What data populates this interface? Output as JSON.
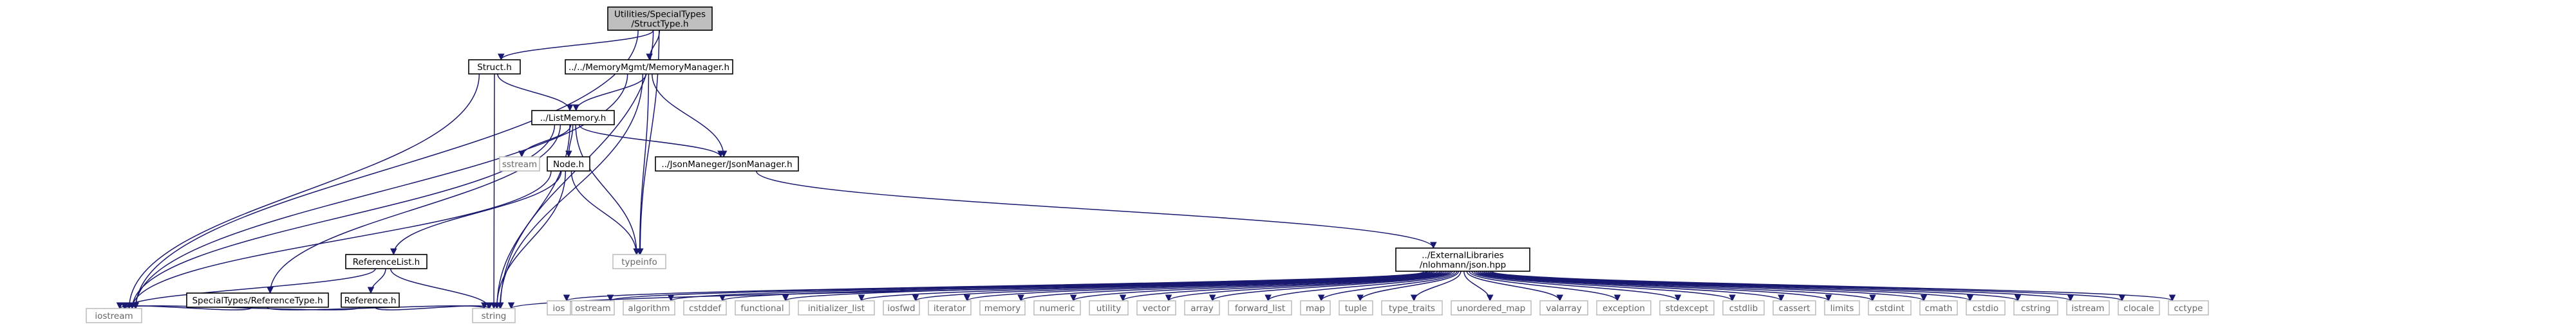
{
  "graph": {
    "nodes": [
      {
        "id": "root",
        "lines": [
          "Utilities/SpecialTypes",
          "/StructType.h"
        ],
        "style": "root"
      },
      {
        "id": "struct",
        "lines": [
          "Struct.h"
        ],
        "style": "file"
      },
      {
        "id": "memmgr",
        "lines": [
          "../../MemoryMgmt/MemoryManager.h"
        ],
        "style": "file"
      },
      {
        "id": "listmem",
        "lines": [
          "../ListMemory.h"
        ],
        "style": "file"
      },
      {
        "id": "sstream",
        "lines": [
          "sstream"
        ],
        "style": "lib"
      },
      {
        "id": "node",
        "lines": [
          "Node.h"
        ],
        "style": "file"
      },
      {
        "id": "jsonmgr",
        "lines": [
          "../JsonManeger/JsonManager.h"
        ],
        "style": "file"
      },
      {
        "id": "typeinfo",
        "lines": [
          "typeinfo"
        ],
        "style": "lib"
      },
      {
        "id": "reflist",
        "lines": [
          "ReferenceList.h"
        ],
        "style": "file"
      },
      {
        "id": "reftype",
        "lines": [
          "SpecialTypes/ReferenceType.h"
        ],
        "style": "file"
      },
      {
        "id": "ref",
        "lines": [
          "Reference.h"
        ],
        "style": "file"
      },
      {
        "id": "iostream",
        "lines": [
          "iostream"
        ],
        "style": "lib"
      },
      {
        "id": "string",
        "lines": [
          "string"
        ],
        "style": "lib"
      },
      {
        "id": "json",
        "lines": [
          "../ExternalLibraries",
          "/nlohmann/json.hpp"
        ],
        "style": "file"
      },
      {
        "id": "ios",
        "lines": [
          "ios"
        ],
        "style": "lib"
      },
      {
        "id": "ostream",
        "lines": [
          "ostream"
        ],
        "style": "lib"
      },
      {
        "id": "algorithm",
        "lines": [
          "algorithm"
        ],
        "style": "lib"
      },
      {
        "id": "cstddef",
        "lines": [
          "cstddef"
        ],
        "style": "lib"
      },
      {
        "id": "functional",
        "lines": [
          "functional"
        ],
        "style": "lib"
      },
      {
        "id": "initializer_list",
        "lines": [
          "initializer_list"
        ],
        "style": "lib"
      },
      {
        "id": "iosfwd",
        "lines": [
          "iosfwd"
        ],
        "style": "lib"
      },
      {
        "id": "iterator",
        "lines": [
          "iterator"
        ],
        "style": "lib"
      },
      {
        "id": "memory",
        "lines": [
          "memory"
        ],
        "style": "lib"
      },
      {
        "id": "numeric",
        "lines": [
          "numeric"
        ],
        "style": "lib"
      },
      {
        "id": "utility",
        "lines": [
          "utility"
        ],
        "style": "lib"
      },
      {
        "id": "vector",
        "lines": [
          "vector"
        ],
        "style": "lib"
      },
      {
        "id": "array",
        "lines": [
          "array"
        ],
        "style": "lib"
      },
      {
        "id": "forward_list",
        "lines": [
          "forward_list"
        ],
        "style": "lib"
      },
      {
        "id": "map",
        "lines": [
          "map"
        ],
        "style": "lib"
      },
      {
        "id": "tuple",
        "lines": [
          "tuple"
        ],
        "style": "lib"
      },
      {
        "id": "type_traits",
        "lines": [
          "type_traits"
        ],
        "style": "lib"
      },
      {
        "id": "unordered_map",
        "lines": [
          "unordered_map"
        ],
        "style": "lib"
      },
      {
        "id": "valarray",
        "lines": [
          "valarray"
        ],
        "style": "lib"
      },
      {
        "id": "exception",
        "lines": [
          "exception"
        ],
        "style": "lib"
      },
      {
        "id": "stdexcept",
        "lines": [
          "stdexcept"
        ],
        "style": "lib"
      },
      {
        "id": "cstdlib",
        "lines": [
          "cstdlib"
        ],
        "style": "lib"
      },
      {
        "id": "cassert",
        "lines": [
          "cassert"
        ],
        "style": "lib"
      },
      {
        "id": "limits",
        "lines": [
          "limits"
        ],
        "style": "lib"
      },
      {
        "id": "cstdint",
        "lines": [
          "cstdint"
        ],
        "style": "lib"
      },
      {
        "id": "cmath",
        "lines": [
          "cmath"
        ],
        "style": "lib"
      },
      {
        "id": "cstdio",
        "lines": [
          "cstdio"
        ],
        "style": "lib"
      },
      {
        "id": "cstring",
        "lines": [
          "cstring"
        ],
        "style": "lib"
      },
      {
        "id": "istream",
        "lines": [
          "istream"
        ],
        "style": "lib"
      },
      {
        "id": "clocale",
        "lines": [
          "clocale"
        ],
        "style": "lib"
      },
      {
        "id": "cctype",
        "lines": [
          "cctype"
        ],
        "style": "lib"
      }
    ],
    "edges": [
      [
        "root",
        "struct"
      ],
      [
        "root",
        "memmgr"
      ],
      [
        "root",
        "iostream"
      ],
      [
        "root",
        "string"
      ],
      [
        "root",
        "typeinfo"
      ],
      [
        "struct",
        "listmem"
      ],
      [
        "struct",
        "iostream"
      ],
      [
        "struct",
        "string"
      ],
      [
        "memmgr",
        "listmem"
      ],
      [
        "memmgr",
        "jsonmgr"
      ],
      [
        "memmgr",
        "typeinfo"
      ],
      [
        "memmgr",
        "iostream"
      ],
      [
        "memmgr",
        "string"
      ],
      [
        "listmem",
        "sstream"
      ],
      [
        "listmem",
        "node"
      ],
      [
        "listmem",
        "jsonmgr"
      ],
      [
        "listmem",
        "typeinfo"
      ],
      [
        "listmem",
        "reftype"
      ],
      [
        "listmem",
        "iostream"
      ],
      [
        "listmem",
        "string"
      ],
      [
        "node",
        "reflist"
      ],
      [
        "node",
        "typeinfo"
      ],
      [
        "node",
        "iostream"
      ],
      [
        "node",
        "string"
      ],
      [
        "jsonmgr",
        "json"
      ],
      [
        "reflist",
        "ref"
      ],
      [
        "reflist",
        "iostream"
      ],
      [
        "reflist",
        "string"
      ],
      [
        "reftype",
        "iostream"
      ],
      [
        "reftype",
        "string"
      ],
      [
        "ref",
        "iostream"
      ],
      [
        "ref",
        "string"
      ],
      [
        "json",
        "ios"
      ],
      [
        "json",
        "ostream"
      ],
      [
        "json",
        "algorithm"
      ],
      [
        "json",
        "cstddef"
      ],
      [
        "json",
        "functional"
      ],
      [
        "json",
        "initializer_list"
      ],
      [
        "json",
        "iosfwd"
      ],
      [
        "json",
        "iterator"
      ],
      [
        "json",
        "memory"
      ],
      [
        "json",
        "numeric"
      ],
      [
        "json",
        "utility"
      ],
      [
        "json",
        "vector"
      ],
      [
        "json",
        "array"
      ],
      [
        "json",
        "forward_list"
      ],
      [
        "json",
        "map"
      ],
      [
        "json",
        "tuple"
      ],
      [
        "json",
        "type_traits"
      ],
      [
        "json",
        "unordered_map"
      ],
      [
        "json",
        "valarray"
      ],
      [
        "json",
        "exception"
      ],
      [
        "json",
        "stdexcept"
      ],
      [
        "json",
        "cstdlib"
      ],
      [
        "json",
        "cassert"
      ],
      [
        "json",
        "limits"
      ],
      [
        "json",
        "cstdint"
      ],
      [
        "json",
        "cmath"
      ],
      [
        "json",
        "cstdio"
      ],
      [
        "json",
        "cstring"
      ],
      [
        "json",
        "istream"
      ],
      [
        "json",
        "clocale"
      ],
      [
        "json",
        "cctype"
      ],
      [
        "json",
        "string"
      ]
    ]
  },
  "colors": {
    "edge": "#191970",
    "root_fill": "#bfbfbf",
    "root_stroke": "#000000",
    "file_fill": "#ffffff",
    "file_stroke": "#000000",
    "lib_fill": "#ffffff",
    "lib_stroke": "#bfbfbf",
    "lib_text": "#666666",
    "text": "#000000"
  }
}
